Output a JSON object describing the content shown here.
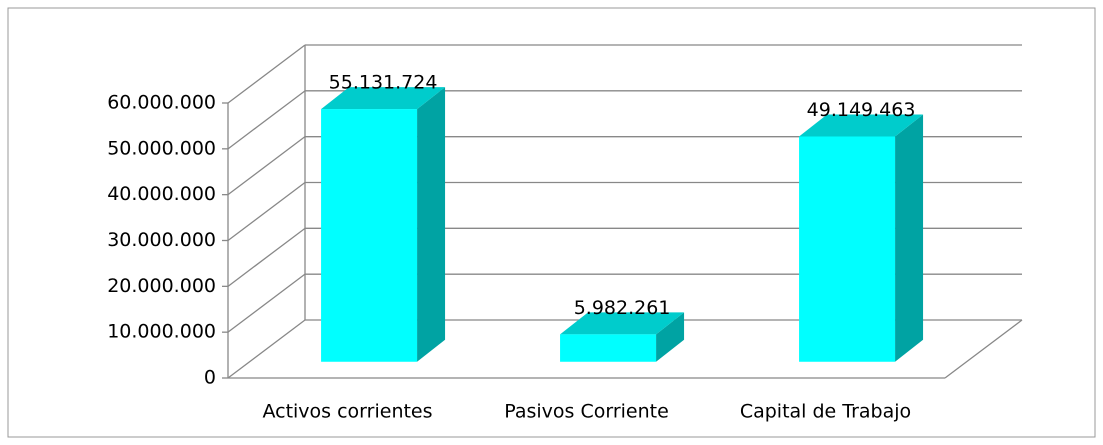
{
  "chart_data": {
    "type": "bar3d",
    "categories": [
      "Activos corrientes",
      "Pasivos Corriente",
      "Capital de Trabajo"
    ],
    "values": [
      55131724,
      5982261,
      49149463
    ],
    "value_labels": [
      "55.131.724",
      "5.982.261",
      "49.149.463"
    ],
    "colors": {
      "front": "#00ffff",
      "top": "#00cccc",
      "side": "#00a3a3"
    },
    "ylim": [
      0,
      60000000
    ],
    "yticks": [
      0,
      {
        "value": 10000000,
        "label": "10.000.000"
      },
      {
        "value": 20000000,
        "label": "20.000.000"
      },
      {
        "value": 30000000,
        "label": "30.000.000"
      },
      {
        "value": 40000000,
        "label": "40.000.000"
      },
      {
        "value": 50000000,
        "label": "50.000.000"
      },
      {
        "value": 60000000,
        "label": "60.000.000"
      }
    ],
    "grid": true
  }
}
